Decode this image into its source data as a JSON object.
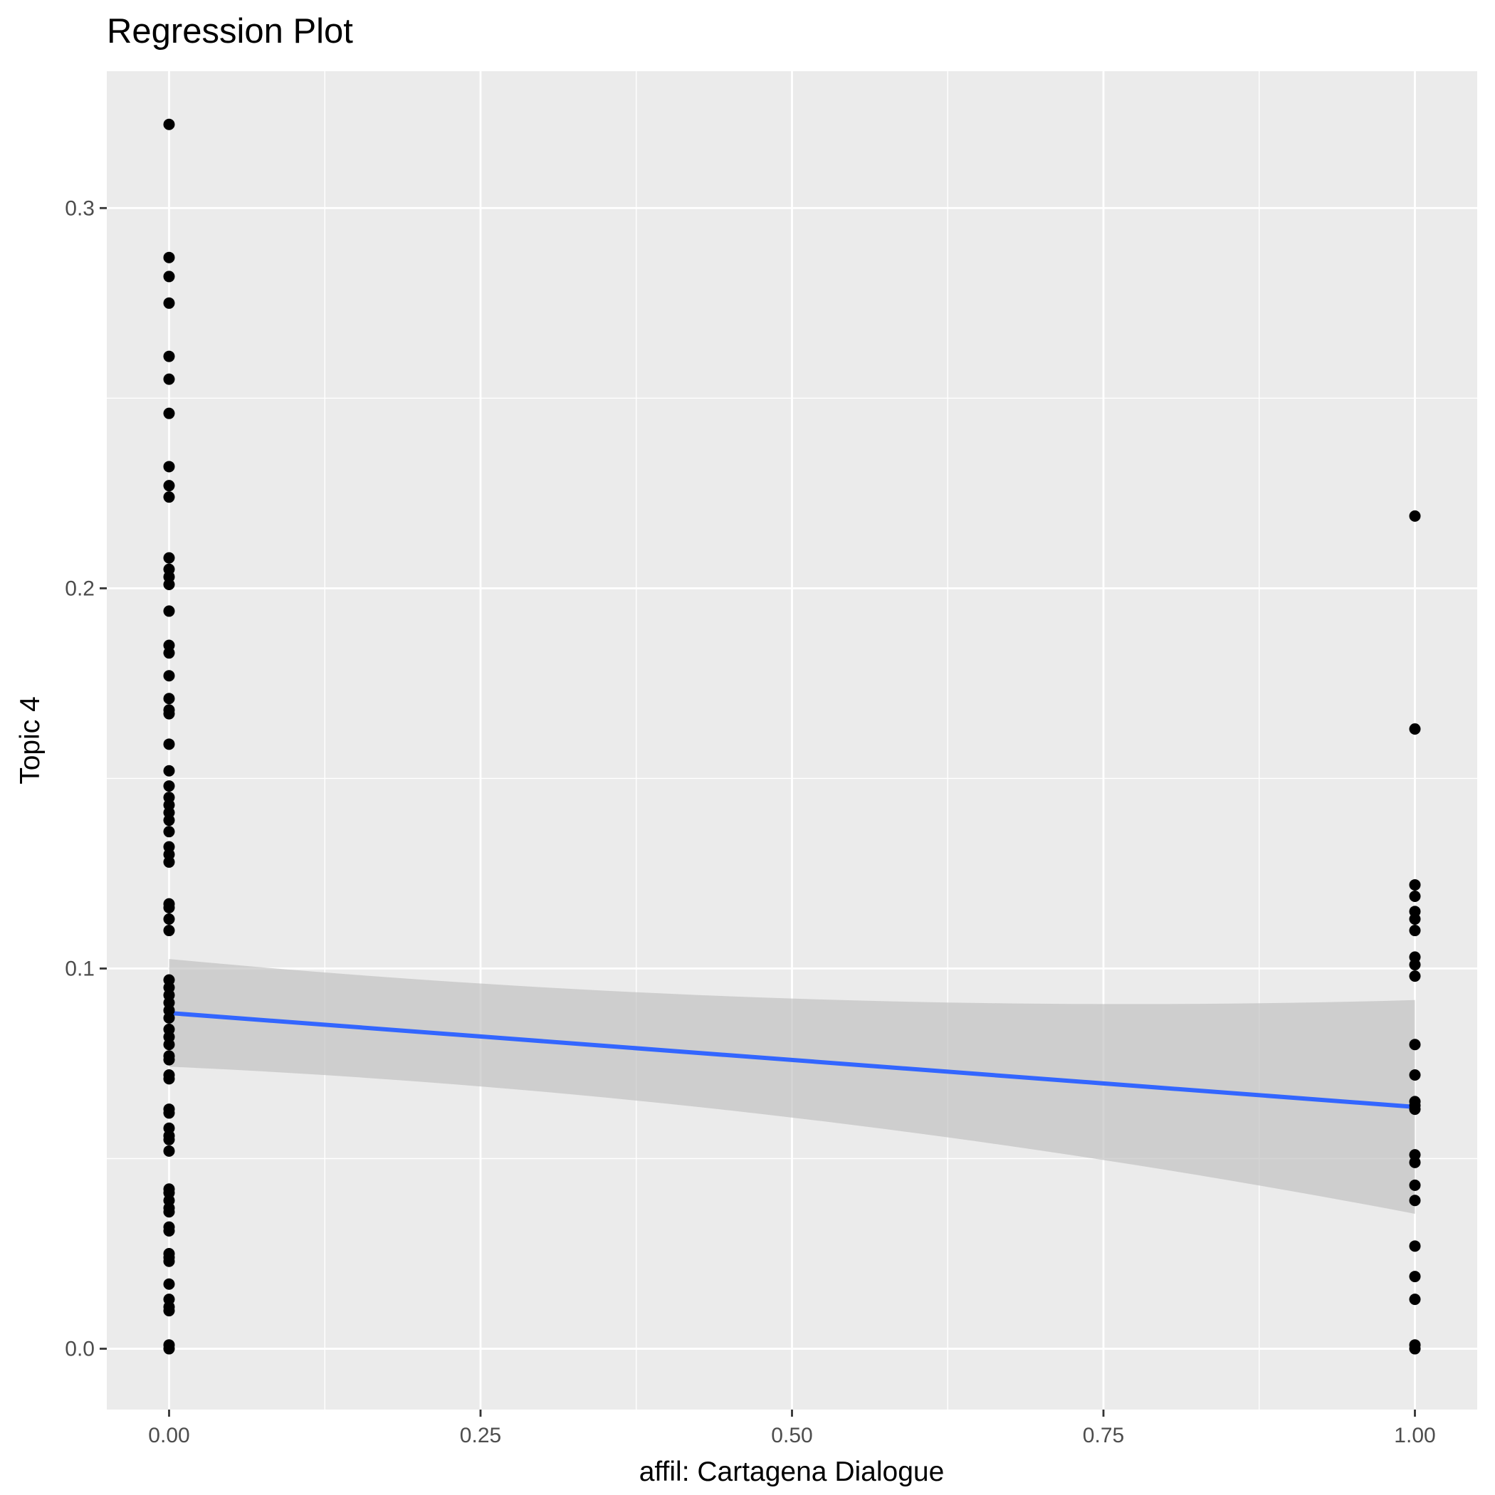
{
  "chart_data": {
    "type": "scatter",
    "title": "Regression Plot",
    "xlabel": "affil: Cartagena Dialogue",
    "ylabel": "Topic 4",
    "xlim": [
      -0.05,
      1.05
    ],
    "ylim": [
      -0.016,
      0.336
    ],
    "x_ticks": [
      0.0,
      0.25,
      0.5,
      0.75,
      1.0
    ],
    "x_tick_labels": [
      "0.00",
      "0.25",
      "0.50",
      "0.75",
      "1.00"
    ],
    "y_ticks": [
      0.0,
      0.1,
      0.2,
      0.3
    ],
    "y_tick_labels": [
      "0.0",
      "0.1",
      "0.2",
      "0.3"
    ],
    "grid": true,
    "legend": "none",
    "colors": {
      "panel": "#ebebeb",
      "grid": "#ffffff",
      "points": "#000000",
      "line": "#3366ff",
      "ribbon": "#bebebe"
    },
    "points": {
      "x0": [
        0.322,
        0.287,
        0.282,
        0.275,
        0.261,
        0.255,
        0.246,
        0.232,
        0.227,
        0.224,
        0.208,
        0.205,
        0.203,
        0.201,
        0.194,
        0.185,
        0.183,
        0.177,
        0.171,
        0.168,
        0.167,
        0.159,
        0.152,
        0.148,
        0.145,
        0.143,
        0.141,
        0.139,
        0.136,
        0.132,
        0.13,
        0.128,
        0.117,
        0.116,
        0.113,
        0.11,
        0.097,
        0.095,
        0.093,
        0.091,
        0.089,
        0.087,
        0.084,
        0.082,
        0.08,
        0.077,
        0.076,
        0.072,
        0.071,
        0.063,
        0.062,
        0.058,
        0.056,
        0.055,
        0.052,
        0.042,
        0.041,
        0.039,
        0.037,
        0.036,
        0.032,
        0.031,
        0.025,
        0.024,
        0.023,
        0.017,
        0.013,
        0.011,
        0.01,
        0.001,
        0.0
      ],
      "x1": [
        0.219,
        0.163,
        0.122,
        0.119,
        0.115,
        0.113,
        0.11,
        0.103,
        0.101,
        0.098,
        0.08,
        0.072,
        0.065,
        0.064,
        0.063,
        0.051,
        0.049,
        0.043,
        0.039,
        0.027,
        0.019,
        0.013,
        0.001,
        0.0
      ]
    },
    "regression": {
      "fit": [
        0.0883,
        0.0636
      ],
      "ci_at_x0": [
        0.0742,
        0.1025
      ],
      "ci_at_x1": [
        0.0355,
        0.0917
      ],
      "ci_mid": [
        0.0608,
        0.0921
      ]
    }
  }
}
